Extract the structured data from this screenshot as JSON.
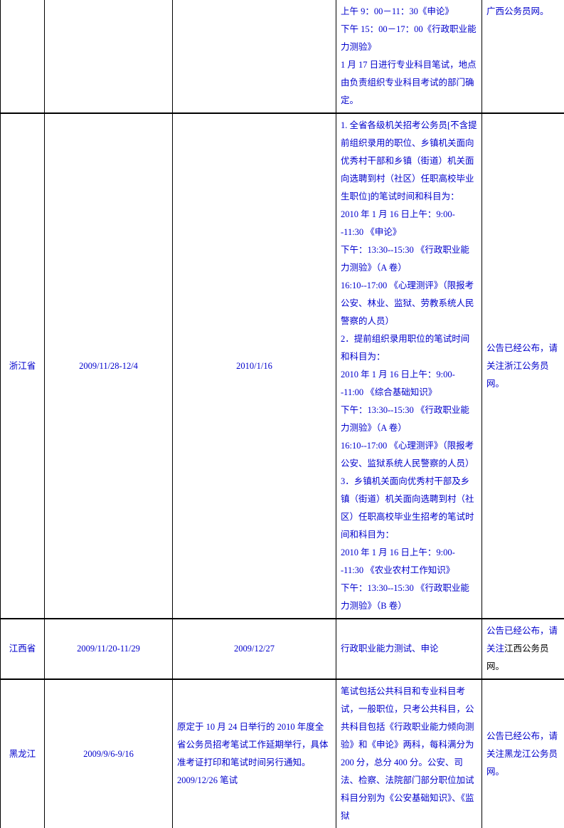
{
  "table": {
    "border_color": "#000000",
    "text_color": "#0000cc",
    "black_text_color": "#000000",
    "background_color": "#ffffff",
    "rows": [
      {
        "province": "",
        "reg_date": "",
        "exam_date": "",
        "details": "上午 9：00－11：30《申论》\n下午 15：00－17：00《行政职业能力测验》\n1 月 17 日进行专业科目笔试，地点由负责组织专业科目考试的部门确定。",
        "notice": "广西公务员网。"
      },
      {
        "province": "浙江省",
        "reg_date": "2009/11/28-12/4",
        "exam_date": "2010/1/16",
        "details": "1. 全省各级机关招考公务员[不含提前组织录用的职位、乡镇机关面向优秀村干部和乡镇（街道）机关面向选聘到村（社区）任职高校毕业生职位]的笔试时间和科目为：\n2010 年 1 月 16 日上午：9:00--11:30 《申论》\n下午：13:30--15:30 《行政职业能力测验》（A 卷）\n16:10--17:00 《心理测评》（限报考公安、林业、监狱、劳教系统人民警察的人员）\n2．提前组织录用职位的笔试时间和科目为：\n2010 年 1 月 16 日上午：9:00--11:00 《综合基础知识》\n下午：13:30--15:30 《行政职业能力测验》（A 卷）\n16:10--17:00 《心理测评》（限报考公安、监狱系统人民警察的人员）\n3．乡镇机关面向优秀村干部及乡镇（街道）机关面向选聘到村（社区）任职高校毕业生招考的笔试时间和科目为：\n2010 年 1 月 16 日上午：9:00--11:30 《农业农村工作知识》\n下午：13:30--15:30 《行政职业能力测验》（B 卷）",
        "notice": "公告已经公布，请关注浙江公务员网。"
      },
      {
        "province": "江西省",
        "reg_date": "2009/11/20-11/29",
        "exam_date": "2009/12/27",
        "details": "行政职业能力测试、申论",
        "notice_pre": "公告已经公布，请关注",
        "notice_black": "江西公务员网。"
      },
      {
        "province": "黑龙江",
        "reg_date": "2009/9/6-9/16",
        "exam_date": "原定于 10 月 24 日举行的 2010 年度全省公务员招考笔试工作延期举行，具体准考证打印和笔试时间另行通知。\n2009/12/26 笔试",
        "details": "笔试包括公共科目和专业科目考试，一般职位，只考公共科目，公共科目包括《行政职业能力倾向测验》和《申论》两科，每科满分为 200 分，总分 400 分。公安、司法、检察、法院部门部分职位加试科目分别为《公安基础知识》、《监狱",
        "notice": "公告已经公布，请关注黑龙江公务员网。"
      }
    ]
  }
}
